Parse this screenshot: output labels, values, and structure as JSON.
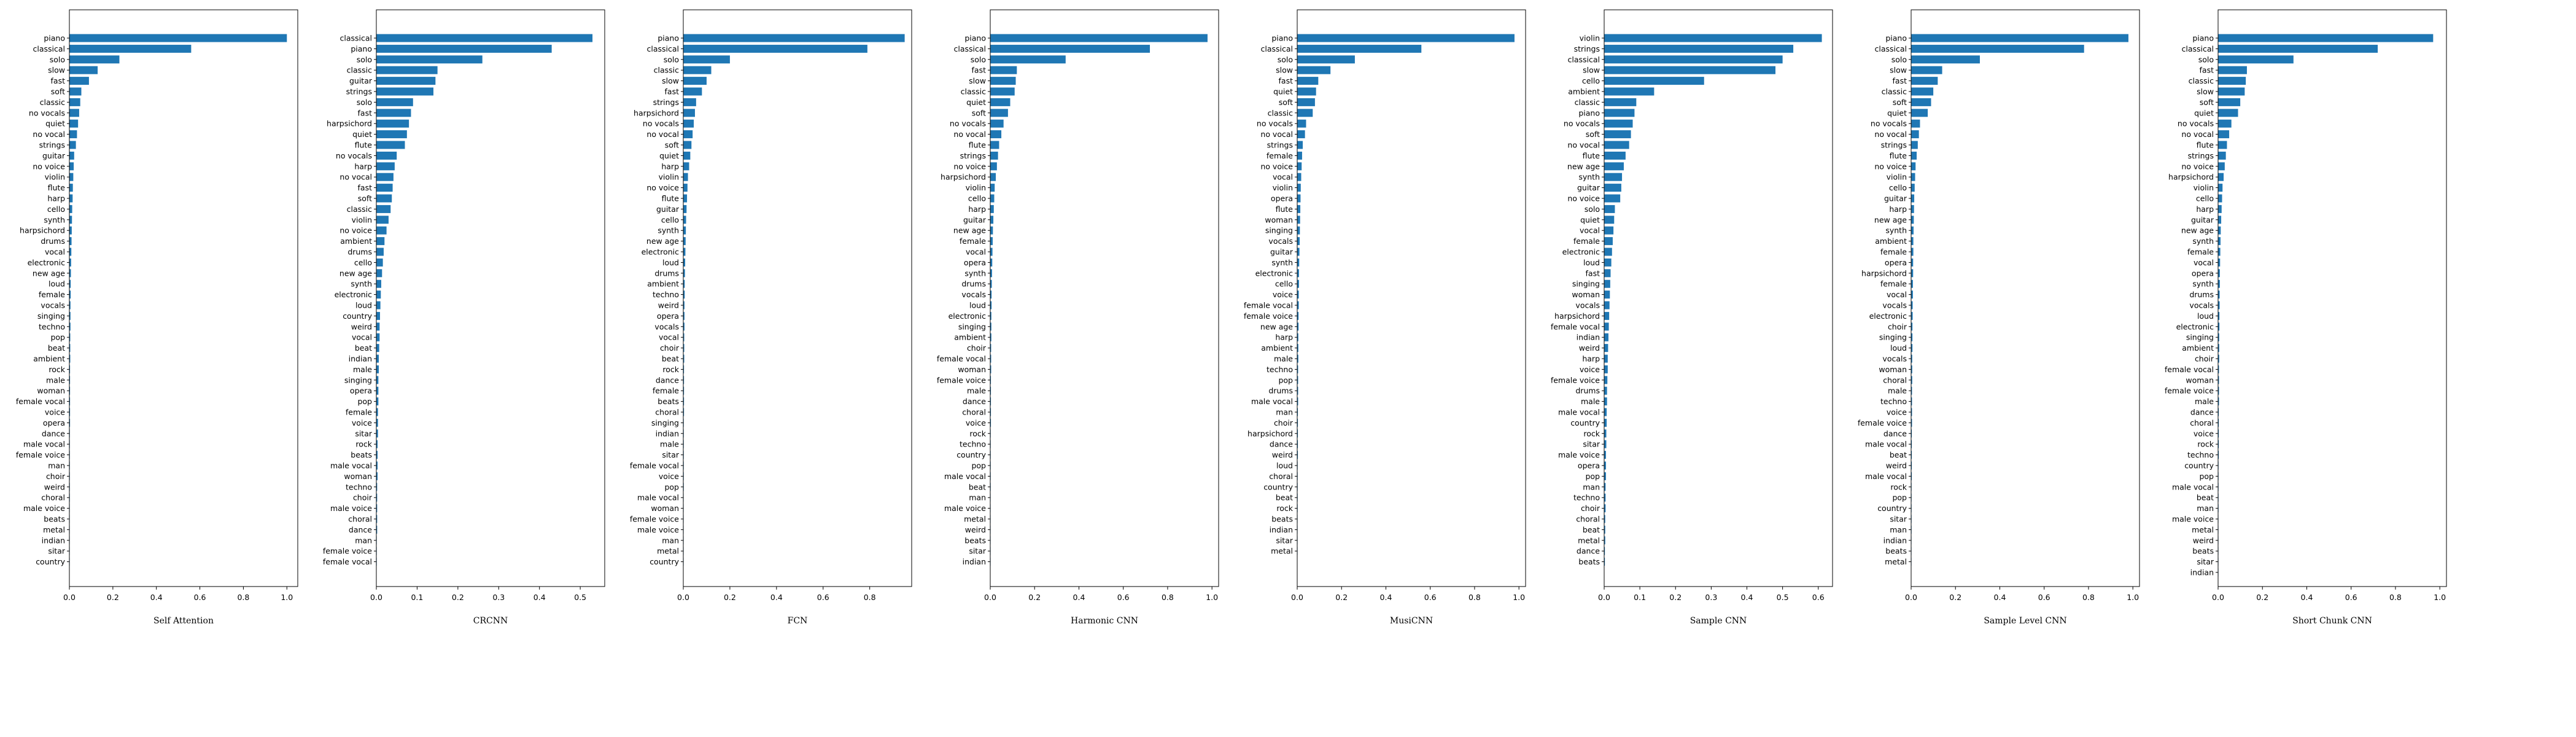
{
  "style": {
    "bar_color": "#1f77b4",
    "axis_color": "#000000",
    "background": "#ffffff"
  },
  "chart_data": [
    {
      "type": "bar",
      "orientation": "horizontal",
      "xlabel": "Self Attention",
      "xlim": [
        0,
        1.05
      ],
      "xticks": [
        "0.0",
        "0.2",
        "0.4",
        "0.6",
        "0.8",
        "1.0"
      ],
      "grid": false,
      "categories": [
        "piano",
        "classical",
        "solo",
        "slow",
        "fast",
        "soft",
        "classic",
        "no vocals",
        "quiet",
        "no vocal",
        "strings",
        "guitar",
        "no voice",
        "violin",
        "flute",
        "harp",
        "cello",
        "synth",
        "harpsichord",
        "drums",
        "vocal",
        "electronic",
        "new age",
        "loud",
        "female",
        "vocals",
        "singing",
        "techno",
        "pop",
        "beat",
        "ambient",
        "rock",
        "male",
        "woman",
        "female vocal",
        "voice",
        "opera",
        "dance",
        "male vocal",
        "female voice",
        "man",
        "choir",
        "weird",
        "choral",
        "male voice",
        "beats",
        "metal",
        "indian",
        "sitar",
        "country"
      ],
      "values": [
        1.0,
        0.56,
        0.23,
        0.13,
        0.09,
        0.055,
        0.05,
        0.045,
        0.04,
        0.035,
        0.03,
        0.022,
        0.02,
        0.018,
        0.016,
        0.015,
        0.013,
        0.012,
        0.011,
        0.01,
        0.009,
        0.008,
        0.007,
        0.006,
        0.006,
        0.005,
        0.005,
        0.005,
        0.004,
        0.004,
        0.004,
        0.003,
        0.003,
        0.003,
        0.003,
        0.003,
        0.003,
        0.002,
        0.002,
        0.002,
        0.002,
        0.002,
        0.002,
        0.002,
        0.001,
        0.001,
        0.001,
        0.001,
        0.001,
        0.001
      ]
    },
    {
      "type": "bar",
      "orientation": "horizontal",
      "xlabel": "CRCNN",
      "xlim": [
        0,
        0.56
      ],
      "xticks": [
        "0.0",
        "0.1",
        "0.2",
        "0.3",
        "0.4",
        "0.5"
      ],
      "grid": false,
      "categories": [
        "classical",
        "piano",
        "solo",
        "classic",
        "guitar",
        "strings",
        "solo",
        "fast",
        "harpsichord",
        "quiet",
        "flute",
        "no vocals",
        "harp",
        "no vocal",
        "fast",
        "soft",
        "classic",
        "violin",
        "no voice",
        "ambient",
        "drums",
        "cello",
        "new age",
        "synth",
        "electronic",
        "loud",
        "country",
        "weird",
        "vocal",
        "beat",
        "indian",
        "male",
        "singing",
        "opera",
        "pop",
        "female",
        "voice",
        "sitar",
        "rock",
        "beats",
        "male vocal",
        "woman",
        "techno",
        "choir",
        "male voice",
        "choral",
        "dance",
        "man",
        "female voice",
        "female vocal"
      ],
      "values": [
        0.53,
        0.43,
        0.26,
        0.15,
        0.145,
        0.14,
        0.09,
        0.085,
        0.08,
        0.075,
        0.07,
        0.05,
        0.045,
        0.042,
        0.04,
        0.038,
        0.035,
        0.03,
        0.025,
        0.02,
        0.018,
        0.016,
        0.014,
        0.012,
        0.011,
        0.01,
        0.009,
        0.008,
        0.008,
        0.007,
        0.006,
        0.006,
        0.005,
        0.005,
        0.005,
        0.004,
        0.004,
        0.004,
        0.003,
        0.003,
        0.003,
        0.003,
        0.002,
        0.002,
        0.002,
        0.002,
        0.002,
        0.001,
        0.001,
        0.001
      ]
    },
    {
      "type": "bar",
      "orientation": "horizontal",
      "xlabel": "FCN",
      "xlim": [
        0,
        0.98
      ],
      "xticks": [
        "0.0",
        "0.2",
        "0.4",
        "0.6",
        "0.8"
      ],
      "grid": false,
      "categories": [
        "piano",
        "classical",
        "solo",
        "classic",
        "slow",
        "fast",
        "strings",
        "harpsichord",
        "no vocals",
        "no vocal",
        "soft",
        "quiet",
        "harp",
        "violin",
        "no voice",
        "flute",
        "guitar",
        "cello",
        "synth",
        "new age",
        "electronic",
        "loud",
        "drums",
        "ambient",
        "techno",
        "weird",
        "opera",
        "vocals",
        "vocal",
        "choir",
        "beat",
        "rock",
        "dance",
        "female",
        "beats",
        "choral",
        "singing",
        "indian",
        "male",
        "sitar",
        "female vocal",
        "voice",
        "pop",
        "male vocal",
        "woman",
        "female voice",
        "male voice",
        "man",
        "metal",
        "country"
      ],
      "values": [
        0.95,
        0.79,
        0.2,
        0.12,
        0.1,
        0.08,
        0.055,
        0.05,
        0.045,
        0.04,
        0.035,
        0.03,
        0.025,
        0.02,
        0.018,
        0.016,
        0.014,
        0.012,
        0.011,
        0.01,
        0.009,
        0.008,
        0.007,
        0.006,
        0.006,
        0.005,
        0.005,
        0.005,
        0.004,
        0.004,
        0.004,
        0.003,
        0.003,
        0.003,
        0.003,
        0.003,
        0.002,
        0.002,
        0.002,
        0.002,
        0.002,
        0.002,
        0.002,
        0.001,
        0.001,
        0.001,
        0.001,
        0.001,
        0.001,
        0.001
      ]
    },
    {
      "type": "bar",
      "orientation": "horizontal",
      "xlabel": "Harmonic CNN",
      "xlim": [
        0,
        1.03
      ],
      "xticks": [
        "0.0",
        "0.2",
        "0.4",
        "0.6",
        "0.8",
        "1.0"
      ],
      "grid": false,
      "categories": [
        "piano",
        "classical",
        "solo",
        "fast",
        "slow",
        "classic",
        "quiet",
        "soft",
        "no vocals",
        "no vocal",
        "flute",
        "strings",
        "no voice",
        "harpsichord",
        "violin",
        "cello",
        "harp",
        "guitar",
        "new age",
        "female",
        "vocal",
        "opera",
        "synth",
        "drums",
        "vocals",
        "loud",
        "electronic",
        "singing",
        "ambient",
        "choir",
        "female vocal",
        "woman",
        "female voice",
        "male",
        "dance",
        "choral",
        "voice",
        "rock",
        "techno",
        "country",
        "pop",
        "male vocal",
        "beat",
        "man",
        "male voice",
        "metal",
        "weird",
        "beats",
        "sitar",
        "indian"
      ],
      "values": [
        0.98,
        0.72,
        0.34,
        0.12,
        0.115,
        0.11,
        0.09,
        0.08,
        0.06,
        0.05,
        0.04,
        0.035,
        0.03,
        0.025,
        0.02,
        0.018,
        0.016,
        0.014,
        0.012,
        0.011,
        0.01,
        0.009,
        0.008,
        0.007,
        0.006,
        0.006,
        0.005,
        0.005,
        0.005,
        0.004,
        0.004,
        0.004,
        0.003,
        0.003,
        0.003,
        0.003,
        0.003,
        0.002,
        0.002,
        0.002,
        0.002,
        0.002,
        0.002,
        0.001,
        0.001,
        0.001,
        0.001,
        0.001,
        0.001,
        0.001
      ]
    },
    {
      "type": "bar",
      "orientation": "horizontal",
      "xlabel": "MusiCNN",
      "xlim": [
        0,
        1.03
      ],
      "xticks": [
        "0.0",
        "0.2",
        "0.4",
        "0.6",
        "0.8",
        "1.0"
      ],
      "grid": false,
      "categories": [
        "piano",
        "classical",
        "solo",
        "slow",
        "fast",
        "quiet",
        "soft",
        "classic",
        "no vocals",
        "no vocal",
        "strings",
        "female",
        "no voice",
        "vocal",
        "violin",
        "opera",
        "flute",
        "woman",
        "singing",
        "vocals",
        "guitar",
        "synth",
        "electronic",
        "cello",
        "voice",
        "female vocal",
        "female voice",
        "new age",
        "harp",
        "ambient",
        "male",
        "techno",
        "pop",
        "drums",
        "male vocal",
        "man",
        "choir",
        "harpsichord",
        "dance",
        "weird",
        "loud",
        "choral",
        "country",
        "beat",
        "rock",
        "beats",
        "indian",
        "sitar",
        "metal"
      ],
      "values": [
        0.98,
        0.56,
        0.26,
        0.15,
        0.095,
        0.085,
        0.08,
        0.07,
        0.04,
        0.035,
        0.025,
        0.022,
        0.02,
        0.018,
        0.016,
        0.015,
        0.014,
        0.013,
        0.012,
        0.011,
        0.01,
        0.009,
        0.008,
        0.008,
        0.007,
        0.007,
        0.006,
        0.006,
        0.005,
        0.005,
        0.005,
        0.004,
        0.004,
        0.004,
        0.004,
        0.003,
        0.003,
        0.003,
        0.003,
        0.003,
        0.002,
        0.002,
        0.002,
        0.002,
        0.002,
        0.001,
        0.001,
        0.001,
        0.001
      ]
    },
    {
      "type": "bar",
      "orientation": "horizontal",
      "xlabel": "Sample CNN",
      "xlim": [
        0,
        0.64
      ],
      "xticks": [
        "0.0",
        "0.1",
        "0.2",
        "0.3",
        "0.4",
        "0.5",
        "0.6"
      ],
      "grid": false,
      "categories": [
        "violin",
        "strings",
        "classical",
        "slow",
        "cello",
        "ambient",
        "classic",
        "piano",
        "no vocals",
        "soft",
        "no vocal",
        "flute",
        "new age",
        "synth",
        "guitar",
        "no voice",
        "solo",
        "quiet",
        "vocal",
        "female",
        "electronic",
        "loud",
        "fast",
        "singing",
        "woman",
        "vocals",
        "harpsichord",
        "female vocal",
        "indian",
        "weird",
        "harp",
        "voice",
        "female voice",
        "drums",
        "male",
        "male vocal",
        "country",
        "rock",
        "sitar",
        "male voice",
        "opera",
        "pop",
        "man",
        "techno",
        "choir",
        "choral",
        "beat",
        "metal",
        "dance",
        "beats"
      ],
      "values": [
        0.61,
        0.53,
        0.5,
        0.48,
        0.28,
        0.14,
        0.09,
        0.085,
        0.08,
        0.075,
        0.07,
        0.06,
        0.055,
        0.05,
        0.048,
        0.045,
        0.03,
        0.028,
        0.026,
        0.024,
        0.022,
        0.02,
        0.018,
        0.017,
        0.016,
        0.015,
        0.014,
        0.013,
        0.012,
        0.011,
        0.01,
        0.01,
        0.009,
        0.008,
        0.008,
        0.007,
        0.007,
        0.006,
        0.006,
        0.005,
        0.005,
        0.005,
        0.004,
        0.004,
        0.004,
        0.003,
        0.003,
        0.003,
        0.002,
        0.002
      ]
    },
    {
      "type": "bar",
      "orientation": "horizontal",
      "xlabel": "Sample Level CNN",
      "xlim": [
        0,
        1.03
      ],
      "xticks": [
        "0.0",
        "0.2",
        "0.4",
        "0.6",
        "0.8",
        "1.0"
      ],
      "grid": false,
      "categories": [
        "piano",
        "classical",
        "solo",
        "slow",
        "fast",
        "classic",
        "soft",
        "quiet",
        "no vocals",
        "no vocal",
        "strings",
        "flute",
        "no voice",
        "violin",
        "cello",
        "guitar",
        "harp",
        "new age",
        "synth",
        "ambient",
        "female",
        "opera",
        "harpsichord",
        "female",
        "vocal",
        "vocals",
        "electronic",
        "choir",
        "singing",
        "loud",
        "vocals",
        "woman",
        "choral",
        "male",
        "techno",
        "voice",
        "female voice",
        "dance",
        "male vocal",
        "beat",
        "weird",
        "male vocal",
        "rock",
        "pop",
        "country",
        "sitar",
        "man",
        "indian",
        "beats",
        "metal"
      ],
      "values": [
        0.98,
        0.78,
        0.31,
        0.14,
        0.12,
        0.1,
        0.09,
        0.075,
        0.04,
        0.035,
        0.03,
        0.025,
        0.02,
        0.018,
        0.016,
        0.014,
        0.013,
        0.012,
        0.011,
        0.01,
        0.01,
        0.009,
        0.009,
        0.008,
        0.008,
        0.007,
        0.007,
        0.006,
        0.006,
        0.006,
        0.005,
        0.005,
        0.005,
        0.004,
        0.004,
        0.004,
        0.004,
        0.003,
        0.003,
        0.003,
        0.003,
        0.003,
        0.002,
        0.002,
        0.002,
        0.002,
        0.002,
        0.001,
        0.001,
        0.001
      ]
    },
    {
      "type": "bar",
      "orientation": "horizontal",
      "xlabel": "Short Chunk CNN",
      "xlim": [
        0,
        1.03
      ],
      "xticks": [
        "0.0",
        "0.2",
        "0.4",
        "0.6",
        "0.8",
        "1.0"
      ],
      "grid": false,
      "categories": [
        "piano",
        "classical",
        "solo",
        "fast",
        "classic",
        "slow",
        "soft",
        "quiet",
        "no vocals",
        "no vocal",
        "flute",
        "strings",
        "no voice",
        "harpsichord",
        "violin",
        "cello",
        "harp",
        "guitar",
        "new age",
        "synth",
        "female",
        "vocal",
        "opera",
        "synth",
        "drums",
        "vocals",
        "loud",
        "electronic",
        "singing",
        "ambient",
        "choir",
        "female vocal",
        "woman",
        "female voice",
        "male",
        "dance",
        "choral",
        "voice",
        "rock",
        "techno",
        "country",
        "pop",
        "male vocal",
        "beat",
        "man",
        "male voice",
        "metal",
        "weird",
        "beats",
        "sitar",
        "indian"
      ],
      "values": [
        0.97,
        0.72,
        0.34,
        0.13,
        0.125,
        0.12,
        0.1,
        0.09,
        0.06,
        0.05,
        0.04,
        0.035,
        0.03,
        0.025,
        0.02,
        0.018,
        0.016,
        0.014,
        0.012,
        0.011,
        0.01,
        0.009,
        0.008,
        0.008,
        0.007,
        0.007,
        0.006,
        0.006,
        0.005,
        0.005,
        0.005,
        0.004,
        0.004,
        0.004,
        0.004,
        0.003,
        0.003,
        0.003,
        0.003,
        0.003,
        0.002,
        0.002,
        0.002,
        0.002,
        0.002,
        0.001,
        0.001,
        0.001,
        0.001,
        0.001,
        0.001
      ]
    }
  ]
}
